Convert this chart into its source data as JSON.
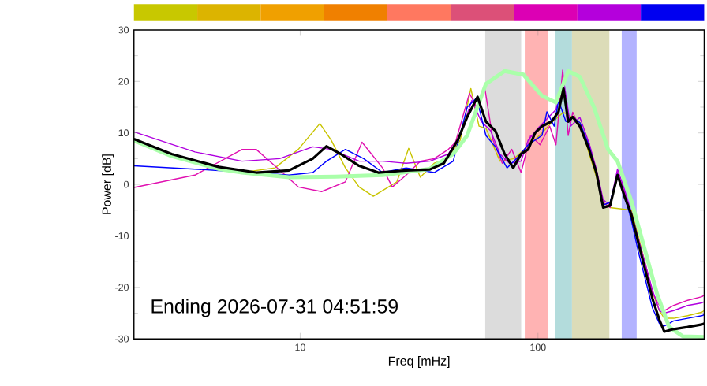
{
  "chart_data": {
    "type": "line",
    "xlabel": "Freq [mHz]",
    "ylabel": "Power [dB]",
    "log": "x",
    "xlim": [
      2,
      500
    ],
    "ylim": [
      -30,
      30
    ],
    "xticks": [
      10,
      100
    ],
    "yticks": [
      -30,
      -20,
      -10,
      0,
      10,
      20,
      30
    ],
    "annotations": [
      "Ending 2026-07-31 04:51:59"
    ],
    "bands": [
      {
        "axis": "x",
        "from": 60,
        "to": 85,
        "color": "#dcdcdc"
      },
      {
        "axis": "x",
        "from": 88,
        "to": 110,
        "color": "#ffb3b3"
      },
      {
        "axis": "x",
        "from": 118,
        "to": 139,
        "color": "#b3dcdc"
      },
      {
        "axis": "x",
        "from": 139,
        "to": 200,
        "color": "#dcdcb8"
      },
      {
        "axis": "x",
        "from": 225,
        "to": 260,
        "color": "#b3b3ff"
      }
    ],
    "series": [
      {
        "color": "#c8c400",
        "x": [
          2,
          3.61,
          5.7,
          7.83,
          9.82,
          12.1,
          13.5,
          15.5,
          17.7,
          20.3,
          25.5,
          28.6,
          32,
          36.6,
          42,
          47.1,
          52.2,
          56.5,
          60.4,
          69.2,
          79.4,
          91,
          104,
          114,
          128,
          140,
          150,
          164,
          176,
          188,
          201,
          216,
          231,
          247,
          264,
          283,
          303,
          324,
          340,
          372,
          426,
          489,
          500
        ],
        "values": [
          8.2,
          4.5,
          2.3,
          3.2,
          6.8,
          11.8,
          8.6,
          3.2,
          -0.5,
          -2.3,
          0.5,
          7,
          1.4,
          4.1,
          5,
          8.6,
          18.6,
          11.3,
          10.9,
          4.5,
          5,
          7.5,
          10,
          12,
          14,
          13,
          12,
          6,
          1.5,
          -3.5,
          -4.5,
          null,
          null,
          -5,
          -10,
          -15.5,
          -21,
          -24.5,
          -26,
          -26,
          -25.5,
          -24.8,
          -24.5
        ]
      },
      {
        "color": "#e010b0",
        "x": [
          2,
          3.61,
          5.7,
          6.53,
          7.83,
          9.82,
          12.3,
          15.5,
          18.2,
          22.2,
          24.4,
          27.9,
          32,
          36.6,
          42,
          45,
          51.5,
          55.2,
          59.8,
          64.7,
          70.8,
          77.6,
          84.9,
          93.1,
          102,
          112,
          119,
          127,
          134,
          140,
          150,
          164,
          176,
          188,
          201,
          216,
          231,
          247,
          264,
          283,
          303,
          324,
          340,
          372,
          426,
          489,
          500
        ],
        "values": [
          -0.6,
          1.8,
          6.8,
          6.8,
          3.6,
          -0.5,
          -1.4,
          0.5,
          8.2,
          3.2,
          -0.5,
          1.8,
          4.5,
          5,
          6.8,
          8.2,
          17.7,
          15,
          18.6,
          8.6,
          4.1,
          6.8,
          2.3,
          9.5,
          7.7,
          11.3,
          7.7,
          22.2,
          9.5,
          14,
          11,
          8,
          2.5,
          -3.5,
          -4.5,
          2.5,
          -1.5,
          -6,
          -11,
          -16,
          -21,
          -23.5,
          -24.5,
          -23.5,
          -22.5,
          -21.8,
          -21.5
        ]
      },
      {
        "color": "#b000e0",
        "x": [
          2,
          3.61,
          5.7,
          8.19,
          11.3,
          13.5,
          17.7,
          22.2,
          27.9,
          35.1,
          42,
          47.1,
          52.7,
          57.8,
          63.2,
          69.2,
          75.9,
          84.9,
          91,
          100,
          109,
          119,
          128,
          137,
          150,
          164,
          176,
          188,
          201,
          216,
          231,
          247,
          264,
          283,
          303,
          324,
          340,
          372,
          426,
          489,
          500
        ],
        "values": [
          10.2,
          6.3,
          4.5,
          5,
          7.3,
          6.8,
          4.5,
          4.5,
          4.1,
          4.5,
          5.9,
          9.5,
          16.3,
          12.2,
          10.4,
          5.9,
          4.1,
          4.5,
          8.6,
          10.9,
          12.7,
          14.5,
          20.4,
          11.3,
          13,
          8,
          3,
          -3,
          -4,
          3,
          -1,
          -5.5,
          -10.5,
          -15.5,
          -20.5,
          -24.5,
          -25,
          -24.5,
          -23.5,
          -23,
          -22.8
        ]
      },
      {
        "color": "#0000ff",
        "x": [
          2,
          4.54,
          8.97,
          11.3,
          12.9,
          15.5,
          18.5,
          22.2,
          27.9,
          36.6,
          44,
          50.4,
          55.2,
          60.4,
          66.2,
          74.1,
          81.1,
          91,
          104,
          109,
          117,
          122,
          131,
          140,
          150,
          164,
          176,
          188,
          201,
          216,
          231,
          247,
          264,
          283,
          303,
          324,
          340,
          372,
          426,
          489,
          500
        ],
        "values": [
          3.6,
          2.7,
          1.8,
          2.3,
          4.5,
          6.8,
          5,
          2.3,
          3.2,
          2.3,
          4.5,
          15,
          16.8,
          9.5,
          7.3,
          3.2,
          5,
          7.7,
          9.5,
          14.1,
          11.3,
          16.3,
          12.2,
          13,
          12,
          7.5,
          2,
          -4,
          -3.5,
          2,
          -2,
          -7,
          -13,
          -18.5,
          -24,
          -27,
          -27.5,
          -26.5,
          -26,
          -25.5,
          -25.3
        ]
      },
      {
        "color": "#aaffaa",
        "x": [
          2,
          2.88,
          4.54,
          5.7,
          8.97,
          14.1,
          22.2,
          35.1,
          44,
          50.4,
          60.4,
          72.4,
          86.9,
          104,
          119,
          134,
          150,
          172,
          197,
          216,
          247,
          283,
          317,
          356,
          407,
          500
        ],
        "values": [
          8.5,
          5.5,
          3,
          2.3,
          1.4,
          1.5,
          1.8,
          3,
          5.9,
          9.5,
          19.5,
          22,
          21.3,
          17.2,
          15.9,
          22,
          20.9,
          15,
          6.8,
          4.5,
          -3.2,
          -13.1,
          -21.3,
          -27.7,
          -29.5,
          -29.6
        ]
      },
      {
        "color": "#000000",
        "x": [
          2,
          2.88,
          4.54,
          6.53,
          8.97,
          11.3,
          12.9,
          14.8,
          17.7,
          21.3,
          27.9,
          35.1,
          40.2,
          46,
          50.4,
          55.7,
          60.4,
          66.2,
          72.4,
          78.7,
          84.9,
          91,
          97.3,
          104,
          114,
          122,
          128,
          134,
          140,
          150,
          164,
          176,
          188,
          201,
          216,
          231,
          247,
          264,
          283,
          303,
          324,
          340,
          372,
          426,
          489,
          500
        ],
        "values": [
          8.8,
          5.9,
          3.4,
          2.3,
          2.7,
          5,
          7.4,
          5.9,
          3.6,
          2.3,
          2.7,
          2.9,
          4.1,
          8.6,
          13.1,
          17,
          12.2,
          10.4,
          5.9,
          3.2,
          5.9,
          6.8,
          10,
          11.3,
          12.2,
          14.1,
          18.6,
          12.2,
          13.1,
          11.3,
          6.8,
          2.3,
          -4.5,
          -4.1,
          1.8,
          -2.3,
          -5.9,
          -11.3,
          -16.8,
          -22.2,
          -26.3,
          -28.6,
          -28.1,
          -27.7,
          -27.2,
          -27
        ]
      }
    ]
  }
}
